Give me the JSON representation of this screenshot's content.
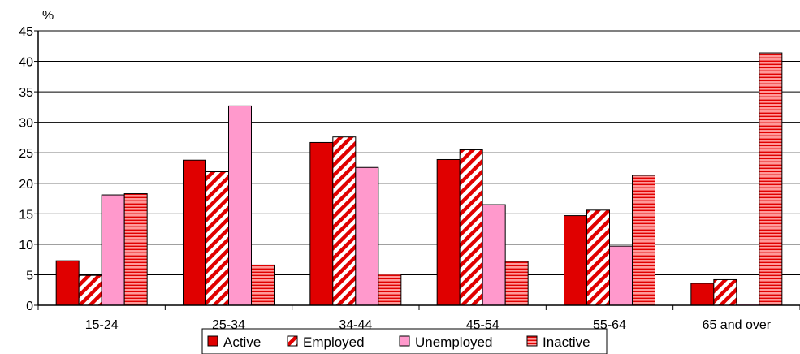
{
  "chart_data": {
    "type": "bar",
    "ylabel": "%",
    "ylim": [
      0,
      45
    ],
    "yticks": [
      0,
      5,
      10,
      15,
      20,
      25,
      30,
      35,
      40,
      45
    ],
    "grid": true,
    "legend_position": "bottom-center",
    "categories": [
      "15-24",
      "25-34",
      "34-44",
      "45-54",
      "55-64",
      "65 and over"
    ],
    "series": [
      {
        "name": "Active",
        "values": [
          7.3,
          23.8,
          26.7,
          23.9,
          14.7,
          3.6
        ],
        "color": "#e00000",
        "pattern": "solid"
      },
      {
        "name": "Employed",
        "values": [
          4.9,
          21.9,
          27.6,
          25.5,
          15.6,
          4.2
        ],
        "color": "#e00000",
        "pattern": "diagonal-stripes"
      },
      {
        "name": "Unemployed",
        "values": [
          18.1,
          32.7,
          22.6,
          16.5,
          9.7,
          0.2
        ],
        "color": "#ff99cc",
        "pattern": "solid"
      },
      {
        "name": "Inactive",
        "values": [
          18.3,
          6.6,
          5.1,
          7.2,
          21.3,
          41.4
        ],
        "color": "#ff9999",
        "pattern": "horizontal-stripes"
      }
    ]
  }
}
